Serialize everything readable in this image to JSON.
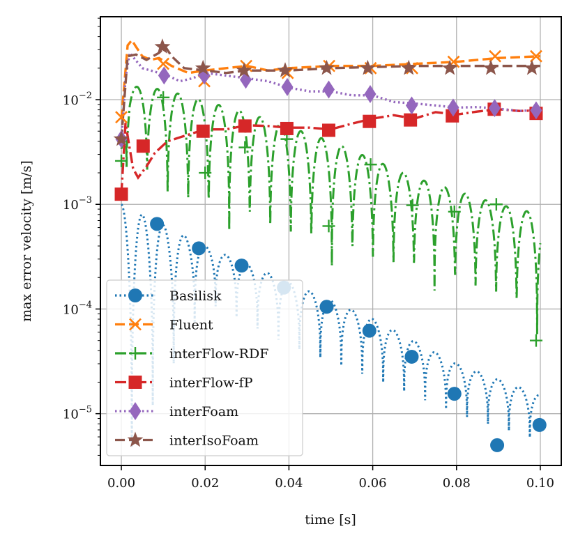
{
  "chart_data": {
    "type": "line",
    "xlabel": "time [s]",
    "ylabel": "max error velocity [m/s]",
    "xlim": [
      -0.005,
      0.105
    ],
    "ylim": [
      3.2e-06,
      0.062
    ],
    "yscale": "log",
    "grid": true,
    "legend": "lower-left",
    "x_ticks": [
      {
        "value": 0.0,
        "label": "0.00"
      },
      {
        "value": 0.02,
        "label": "0.02"
      },
      {
        "value": 0.04,
        "label": "0.04"
      },
      {
        "value": 0.06,
        "label": "0.06"
      },
      {
        "value": 0.08,
        "label": "0.08"
      },
      {
        "value": 0.1,
        "label": "0.10"
      }
    ],
    "y_ticks": [
      {
        "value": 1e-05,
        "base": "10",
        "exp": "−5"
      },
      {
        "value": 0.0001,
        "base": "10",
        "exp": "−4"
      },
      {
        "value": 0.001,
        "base": "10",
        "exp": "−3"
      },
      {
        "value": 0.01,
        "base": "10",
        "exp": "−2"
      }
    ],
    "series": [
      {
        "name": "Basilisk",
        "color": "#1f77b4",
        "linestyle": "dotted",
        "marker": "circle",
        "peak_env": [
          [
            0.0,
            0.001
          ],
          [
            0.02,
            0.0004
          ],
          [
            0.04,
            0.00018
          ],
          [
            0.06,
            8e-05
          ],
          [
            0.08,
            3e-05
          ],
          [
            0.1,
            1.5e-05
          ]
        ],
        "trough_env": [
          [
            0.0,
            3e-06
          ],
          [
            0.02,
            0.00012
          ],
          [
            0.04,
            4.5e-05
          ],
          [
            0.06,
            2.2e-05
          ],
          [
            0.08,
            1e-05
          ],
          [
            0.1,
            5.5e-06
          ]
        ],
        "markers_x": [
          0.0085,
          0.0185,
          0.0287,
          0.0388,
          0.049,
          0.0592,
          0.0693,
          0.0795,
          0.0897,
          0.0998
        ],
        "markers_y": [
          0.00065,
          0.00038,
          0.00026,
          0.00016,
          0.000105,
          6.2e-05,
          3.5e-05,
          1.55e-05,
          5e-06,
          7.8e-06
        ]
      },
      {
        "name": "Fluent",
        "color": "#ff7f0e",
        "linestyle": "dashed",
        "marker": "x",
        "x": [
          0.0,
          0.0015,
          0.0025,
          0.0035,
          0.005,
          0.007,
          0.009,
          0.012,
          0.016,
          0.02,
          0.025,
          0.03,
          0.035,
          0.04,
          0.05,
          0.06,
          0.07,
          0.08,
          0.09,
          0.1
        ],
        "y": [
          0.0065,
          0.033,
          0.037,
          0.032,
          0.026,
          0.024,
          0.025,
          0.021,
          0.018,
          0.019,
          0.02,
          0.021,
          0.019,
          0.02,
          0.021,
          0.021,
          0.022,
          0.023,
          0.025,
          0.026
        ],
        "markers_x": [
          0.0,
          0.01,
          0.0198,
          0.0298,
          0.0397,
          0.0496,
          0.0595,
          0.0694,
          0.0793,
          0.0892,
          0.099
        ],
        "markers_y": [
          0.0068,
          0.022,
          0.015,
          0.021,
          0.018,
          0.021,
          0.02,
          0.02,
          0.023,
          0.026,
          0.026
        ]
      },
      {
        "name": "interFlow-RDF",
        "color": "#2ca02c",
        "linestyle": "dashdot",
        "marker": "plus",
        "peak_env": [
          [
            0.0,
            0.0035
          ],
          [
            0.002,
            0.0135
          ],
          [
            0.01,
            0.0125
          ],
          [
            0.03,
            0.0075
          ],
          [
            0.05,
            0.004
          ],
          [
            0.07,
            0.0018
          ],
          [
            0.09,
            0.001
          ],
          [
            0.1,
            0.0008
          ]
        ],
        "trough_env": [
          [
            0.0,
            0.0026
          ],
          [
            0.01,
            0.0009
          ],
          [
            0.03,
            0.0005
          ],
          [
            0.05,
            0.00026
          ],
          [
            0.07,
            0.00017
          ],
          [
            0.09,
            0.0001
          ],
          [
            0.1,
            5.5e-05
          ]
        ],
        "markers_x": [
          0.0,
          0.01,
          0.02,
          0.0295,
          0.0395,
          0.0495,
          0.0595,
          0.0695,
          0.0795,
          0.0895,
          0.099
        ],
        "markers_y": [
          0.0026,
          0.0105,
          0.002,
          0.0035,
          0.0042,
          0.00062,
          0.0024,
          0.00098,
          0.00085,
          0.001,
          5e-05
        ]
      },
      {
        "name": "interFlow-fP",
        "color": "#d62728",
        "linestyle": "dashdot",
        "marker": "square",
        "x": [
          0.0,
          0.001,
          0.0018,
          0.0028,
          0.004,
          0.006,
          0.008,
          0.011,
          0.015,
          0.02,
          0.025,
          0.03,
          0.035,
          0.04,
          0.045,
          0.05,
          0.055,
          0.06,
          0.065,
          0.07,
          0.075,
          0.08,
          0.085,
          0.09,
          0.095,
          0.1
        ],
        "y": [
          0.00125,
          0.006,
          0.0038,
          0.0022,
          0.0018,
          0.0023,
          0.0031,
          0.004,
          0.0045,
          0.0052,
          0.0052,
          0.0057,
          0.0056,
          0.0054,
          0.0054,
          0.0052,
          0.0059,
          0.0066,
          0.0071,
          0.0066,
          0.0076,
          0.0072,
          0.0077,
          0.0081,
          0.0078,
          0.0079
        ],
        "markers_x": [
          0.0,
          0.0052,
          0.0195,
          0.0295,
          0.0395,
          0.0495,
          0.0592,
          0.069,
          0.079,
          0.089,
          0.099
        ],
        "markers_y": [
          0.00125,
          0.0036,
          0.005,
          0.0056,
          0.0053,
          0.0051,
          0.0062,
          0.0064,
          0.007,
          0.0081,
          0.0074
        ]
      },
      {
        "name": "interFoam",
        "color": "#9467bd",
        "linestyle": "dotted",
        "marker": "diamond",
        "x": [
          0.0,
          0.001,
          0.002,
          0.003,
          0.005,
          0.007,
          0.009,
          0.011,
          0.014,
          0.017,
          0.02,
          0.025,
          0.03,
          0.035,
          0.04,
          0.045,
          0.05,
          0.055,
          0.06,
          0.065,
          0.07,
          0.075,
          0.08,
          0.085,
          0.09,
          0.095,
          0.1
        ],
        "y": [
          0.004,
          0.016,
          0.028,
          0.025,
          0.02,
          0.019,
          0.018,
          0.017,
          0.015,
          0.016,
          0.018,
          0.017,
          0.016,
          0.015,
          0.013,
          0.012,
          0.012,
          0.011,
          0.011,
          0.0095,
          0.0092,
          0.0088,
          0.0084,
          0.0085,
          0.0082,
          0.0078,
          0.008
        ],
        "markers_x": [
          0.0,
          0.0102,
          0.0198,
          0.0297,
          0.0396,
          0.0495,
          0.0594,
          0.0693,
          0.0792,
          0.0891,
          0.099
        ],
        "markers_y": [
          0.0042,
          0.017,
          0.017,
          0.0155,
          0.0132,
          0.0125,
          0.0113,
          0.0088,
          0.0084,
          0.0083,
          0.0079
        ]
      },
      {
        "name": "interIsoFoam",
        "color": "#8c564b",
        "linestyle": "dashed",
        "marker": "star",
        "x": [
          0.0,
          0.0015,
          0.0035,
          0.006,
          0.009,
          0.0105,
          0.012,
          0.015,
          0.02,
          0.025,
          0.03,
          0.035,
          0.04,
          0.05,
          0.06,
          0.07,
          0.08,
          0.09,
          0.1
        ],
        "y": [
          0.0042,
          0.026,
          0.027,
          0.024,
          0.028,
          0.032,
          0.026,
          0.02,
          0.019,
          0.018,
          0.019,
          0.019,
          0.019,
          0.02,
          0.0205,
          0.021,
          0.021,
          0.021,
          0.021
        ],
        "markers_x": [
          0.0,
          0.0098,
          0.0195,
          0.0293,
          0.0391,
          0.049,
          0.0588,
          0.0686,
          0.0784,
          0.0882,
          0.098
        ],
        "markers_y": [
          0.0042,
          0.032,
          0.02,
          0.019,
          0.019,
          0.02,
          0.02,
          0.02,
          0.02,
          0.02,
          0.02
        ]
      }
    ]
  }
}
